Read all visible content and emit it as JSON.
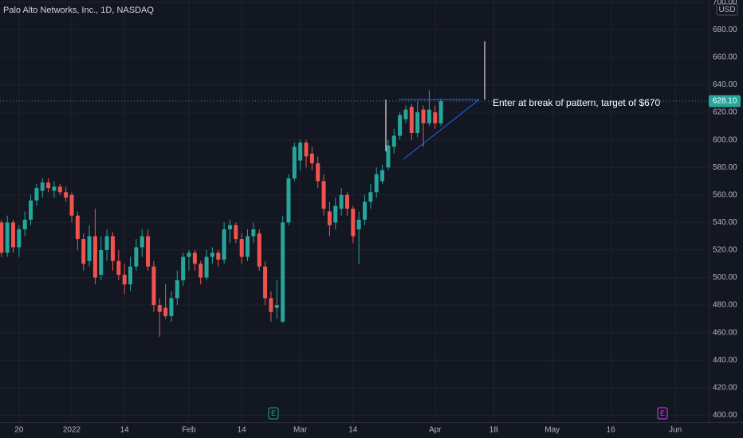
{
  "chart_data": {
    "type": "candlestick",
    "title": "Palo Alto Networks, Inc., 1D, NASDAQ",
    "currency": "USD",
    "up_color": "#26a69a",
    "down_color": "#ef5350",
    "grid": true,
    "series": {
      "open": [
        540,
        518,
        540,
        522,
        535,
        542,
        556,
        563,
        569,
        563,
        566,
        562,
        560,
        545,
        528,
        512,
        530,
        502,
        520,
        530,
        512,
        502,
        495,
        508,
        522,
        530,
        508,
        480,
        478,
        472,
        485,
        498,
        515,
        518,
        510,
        500,
        515,
        518,
        513,
        535,
        538,
        528,
        515,
        530,
        532,
        508,
        485,
        478,
        468,
        540,
        572,
        585,
        598,
        590,
        583,
        570,
        548,
        540,
        550,
        560,
        550,
        535,
        542,
        555,
        562,
        570,
        580,
        595,
        603,
        615,
        624,
        605,
        622,
        612,
        620,
        612
      ],
      "high": [
        542,
        545,
        542,
        538,
        548,
        560,
        568,
        572,
        572,
        570,
        568,
        566,
        562,
        548,
        532,
        538,
        550,
        530,
        535,
        533,
        520,
        510,
        515,
        528,
        535,
        535,
        512,
        485,
        495,
        490,
        505,
        518,
        520,
        520,
        512,
        520,
        522,
        520,
        540,
        542,
        540,
        532,
        535,
        540,
        535,
        512,
        490,
        498,
        545,
        575,
        598,
        600,
        600,
        595,
        588,
        575,
        555,
        558,
        565,
        562,
        552,
        548,
        560,
        568,
        580,
        582,
        600,
        608,
        620,
        625,
        626,
        628,
        625,
        636,
        625,
        630
      ],
      "low": [
        515,
        515,
        518,
        515,
        530,
        538,
        552,
        558,
        562,
        558,
        560,
        555,
        540,
        520,
        505,
        508,
        495,
        498,
        512,
        505,
        498,
        488,
        490,
        505,
        515,
        505,
        475,
        457,
        470,
        468,
        480,
        494,
        505,
        505,
        495,
        498,
        510,
        508,
        510,
        525,
        525,
        510,
        512,
        525,
        505,
        480,
        468,
        470,
        467,
        538,
        570,
        578,
        580,
        578,
        565,
        545,
        530,
        535,
        545,
        545,
        525,
        510,
        538,
        550,
        558,
        568,
        578,
        590,
        600,
        612,
        600,
        602,
        595,
        610,
        608,
        610
      ],
      "close": [
        518,
        540,
        522,
        535,
        542,
        556,
        565,
        569,
        565,
        566,
        562,
        558,
        545,
        528,
        510,
        530,
        500,
        520,
        530,
        512,
        502,
        495,
        508,
        522,
        530,
        508,
        480,
        475,
        472,
        485,
        498,
        515,
        518,
        510,
        500,
        515,
        518,
        513,
        535,
        538,
        528,
        515,
        530,
        535,
        508,
        485,
        475,
        480,
        540,
        572,
        595,
        598,
        588,
        583,
        570,
        550,
        538,
        552,
        560,
        550,
        530,
        542,
        555,
        562,
        575,
        578,
        596,
        603,
        618,
        622,
        605,
        620,
        612,
        622,
        612,
        628.1
      ]
    },
    "ylim": [
      395,
      701.6
    ],
    "yticks": [
      {
        "value": 400,
        "label": "400.00"
      },
      {
        "value": 420,
        "label": "420.00"
      },
      {
        "value": 440,
        "label": "440.00"
      },
      {
        "value": 460,
        "label": "460.00"
      },
      {
        "value": 480,
        "label": "480.00"
      },
      {
        "value": 500,
        "label": "500.00"
      },
      {
        "value": 520,
        "label": "520.00"
      },
      {
        "value": 540,
        "label": "540.00"
      },
      {
        "value": 560,
        "label": "560.00"
      },
      {
        "value": 580,
        "label": "580.00"
      },
      {
        "value": 600,
        "label": "600.00"
      },
      {
        "value": 620,
        "label": "620.00"
      },
      {
        "value": 640,
        "label": "640.00"
      },
      {
        "value": 660,
        "label": "660.00"
      },
      {
        "value": 680,
        "label": "680.00"
      },
      {
        "value": 700,
        "label": "700.00"
      }
    ],
    "xlim": [
      -0.245,
      120.7
    ],
    "xticks": [
      {
        "value": 3,
        "label": "20"
      },
      {
        "value": 12,
        "label": "2022"
      },
      {
        "value": 21,
        "label": "14"
      },
      {
        "value": 32,
        "label": "Feb"
      },
      {
        "value": 41,
        "label": "14"
      },
      {
        "value": 51,
        "label": "Mar"
      },
      {
        "value": 60,
        "label": "14"
      },
      {
        "value": 74,
        "label": "Apr"
      },
      {
        "value": 84,
        "label": "18"
      },
      {
        "value": 94,
        "label": "May"
      },
      {
        "value": 104,
        "label": "16"
      },
      {
        "value": 115,
        "label": "Jun"
      }
    ],
    "last_price": {
      "value": 628.1,
      "label": "628.10"
    },
    "annotation": "Enter at break of pattern, target of $670",
    "earnings": [
      {
        "label": "E",
        "color": "#26a69a"
      },
      {
        "label": "E",
        "color": "#e040fb"
      }
    ]
  }
}
